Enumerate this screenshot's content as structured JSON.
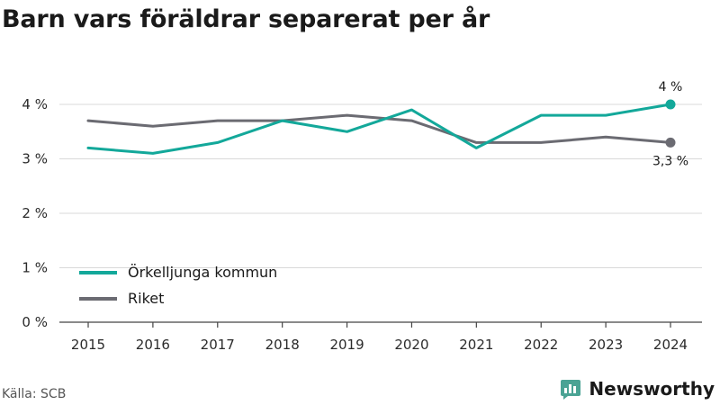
{
  "title": "Barn vars föräldrar separerat per år",
  "source": "Källa: SCB",
  "brand": {
    "name": "Newsworthy",
    "icon": "chart-logo-icon",
    "color": "#4aa394"
  },
  "chart_data": {
    "type": "line",
    "title": "Barn vars föräldrar separerat per år",
    "xlabel": "",
    "ylabel": "",
    "x": [
      "2015",
      "2016",
      "2017",
      "2018",
      "2019",
      "2020",
      "2021",
      "2022",
      "2023",
      "2024"
    ],
    "ylim": [
      0,
      4.2
    ],
    "yticks": [
      0,
      1,
      2,
      3,
      4
    ],
    "ytick_labels": [
      "0 %",
      "1 %",
      "2 %",
      "3 %",
      "4 %"
    ],
    "grid": "horizontal",
    "legend_position": "bottom-left",
    "series": [
      {
        "name": "Örkelljunga kommun",
        "color": "#13a89a",
        "values": [
          3.2,
          3.1,
          3.3,
          3.7,
          3.5,
          3.9,
          3.2,
          3.8,
          3.8,
          4.0
        ],
        "end_label": "4 %"
      },
      {
        "name": "Riket",
        "color": "#6b6b72",
        "values": [
          3.7,
          3.6,
          3.7,
          3.7,
          3.8,
          3.7,
          3.3,
          3.3,
          3.4,
          3.3
        ],
        "end_label": "3,3 %"
      }
    ]
  }
}
